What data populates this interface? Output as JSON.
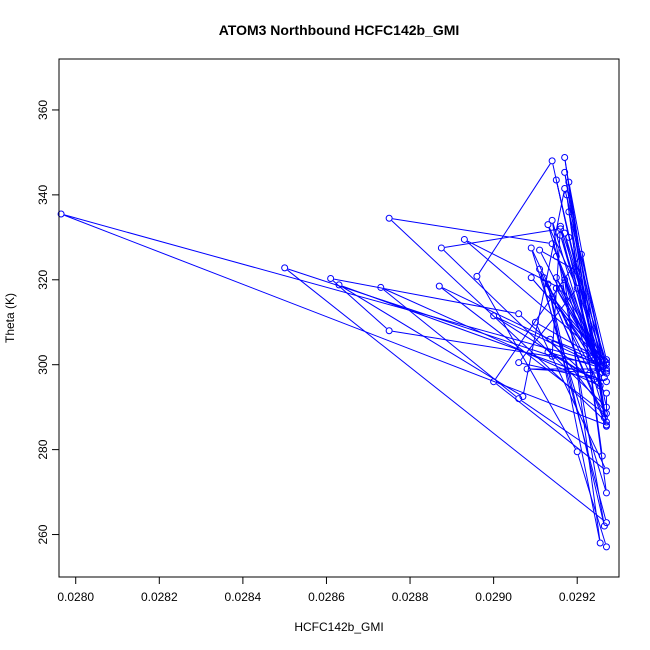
{
  "chart_data": {
    "type": "line",
    "title": "ATOM3 Northbound HCFC142b_GMI",
    "xlabel": "HCFC142b_GMI",
    "ylabel": "Theta (K)",
    "xlim": [
      0.02796,
      0.0293
    ],
    "ylim": [
      250,
      372
    ],
    "xticks": [
      {
        "value": 0.028,
        "label": "0.0280"
      },
      {
        "value": 0.0282,
        "label": "0.0282"
      },
      {
        "value": 0.0284,
        "label": "0.0284"
      },
      {
        "value": 0.0286,
        "label": "0.0286"
      },
      {
        "value": 0.0288,
        "label": "0.0288"
      },
      {
        "value": 0.029,
        "label": "0.0290"
      },
      {
        "value": 0.0292,
        "label": "0.0292"
      }
    ],
    "yticks": [
      {
        "value": 260,
        "label": "260"
      },
      {
        "value": 280,
        "label": "280"
      },
      {
        "value": 300,
        "label": "300"
      },
      {
        "value": 320,
        "label": "320"
      },
      {
        "value": 340,
        "label": "340"
      },
      {
        "value": 360,
        "label": "360"
      }
    ],
    "series": [
      {
        "name": "HCFC142b_GMI vs Theta",
        "color": "#0000ff",
        "marker": "open-circle",
        "points": [
          [
            0.02927,
            257.1
          ],
          [
            0.0292,
            279.5
          ],
          [
            0.02896,
            320.8
          ],
          [
            0.02914,
            348.0
          ],
          [
            0.02918,
            330.0
          ],
          [
            0.029265,
            301.0
          ],
          [
            0.02918,
            336.0
          ],
          [
            0.02927,
            285.8
          ],
          [
            0.027965,
            335.5
          ],
          [
            0.02927,
            300.0
          ],
          [
            0.02915,
            320.5
          ],
          [
            0.02926,
            298.2
          ],
          [
            0.02917,
            345.3
          ],
          [
            0.029265,
            287.5
          ],
          [
            0.02911,
            322.5
          ],
          [
            0.02927,
            262.8
          ],
          [
            0.0285,
            322.8
          ],
          [
            0.02914,
            302.0
          ],
          [
            0.02916,
            332.6
          ],
          [
            0.02927,
            298.5
          ],
          [
            0.02927,
            301.2
          ],
          [
            0.02917,
            341.5
          ],
          [
            0.02907,
            292.5
          ],
          [
            0.02863,
            318.8
          ],
          [
            0.02927,
            296.0
          ],
          [
            0.02906,
            300.5
          ],
          [
            0.0292,
            318.0
          ],
          [
            0.02913,
            333.0
          ],
          [
            0.029265,
            288.5
          ],
          [
            0.02887,
            318.5
          ],
          [
            0.02925,
            300.5
          ],
          [
            0.02915,
            343.5
          ],
          [
            0.02927,
            290.0
          ],
          [
            0.028875,
            327.5
          ],
          [
            0.02916,
            332.0
          ],
          [
            0.02924,
            301.0
          ],
          [
            0.02917,
            348.8
          ],
          [
            0.02927,
            286.5
          ],
          [
            0.02875,
            334.5
          ],
          [
            0.02914,
            328.5
          ],
          [
            0.02926,
            299.5
          ],
          [
            0.029,
            311.5
          ],
          [
            0.02924,
            296.5
          ],
          [
            0.02913,
            303.0
          ],
          [
            0.02925,
            299.5
          ],
          [
            0.02916,
            330.5
          ],
          [
            0.02926,
            300.0
          ],
          [
            0.02875,
            308.0
          ],
          [
            0.02861,
            320.3
          ],
          [
            0.02906,
            312.0
          ],
          [
            0.02927,
            293.3
          ],
          [
            0.02927,
            288.5
          ],
          [
            0.029135,
            306.0
          ],
          [
            0.029265,
            301.0
          ],
          [
            0.02909,
            320.5
          ],
          [
            0.02925,
            302.5
          ],
          [
            0.02893,
            329.5
          ],
          [
            0.02916,
            318.0
          ],
          [
            0.02927,
            298.0
          ],
          [
            0.02921,
            326.0
          ],
          [
            0.029,
            296.0
          ],
          [
            0.02927,
            275.0
          ],
          [
            0.0291,
            310.0
          ],
          [
            0.02926,
            301.0
          ],
          [
            0.02918,
            343.0
          ],
          [
            0.02927,
            285.5
          ],
          [
            0.02912,
            320.5
          ],
          [
            0.029255,
            295.0
          ],
          [
            0.02873,
            318.2
          ],
          [
            0.02906,
            292.0
          ],
          [
            0.02926,
            278.5
          ],
          [
            0.029175,
            340.0
          ],
          [
            0.02927,
            269.8
          ],
          [
            0.02909,
            327.5
          ],
          [
            0.02923,
            298.0
          ],
          [
            0.02925,
            299.0
          ],
          [
            0.02915,
            325.5
          ],
          [
            0.029265,
            297.0
          ],
          [
            0.02911,
            327.0
          ],
          [
            0.0292,
            322.0
          ],
          [
            0.02927,
            300.5
          ],
          [
            0.02914,
            316.0
          ],
          [
            0.029255,
            299.5
          ],
          [
            0.02915,
            318.0
          ],
          [
            0.02926,
            301.0
          ],
          [
            0.02917,
            331.0
          ],
          [
            0.02924,
            301.0
          ],
          [
            0.02914,
            334.0
          ],
          [
            0.029265,
            262.0
          ],
          [
            0.02913,
            319.0
          ],
          [
            0.029255,
            258.0
          ],
          [
            0.02917,
            320.0
          ],
          [
            0.02925,
            299.0
          ],
          [
            0.02918,
            310.0
          ],
          [
            0.029255,
            298.0
          ],
          [
            0.02908,
            299.0
          ],
          [
            0.02927,
            299.0
          ]
        ]
      }
    ]
  }
}
